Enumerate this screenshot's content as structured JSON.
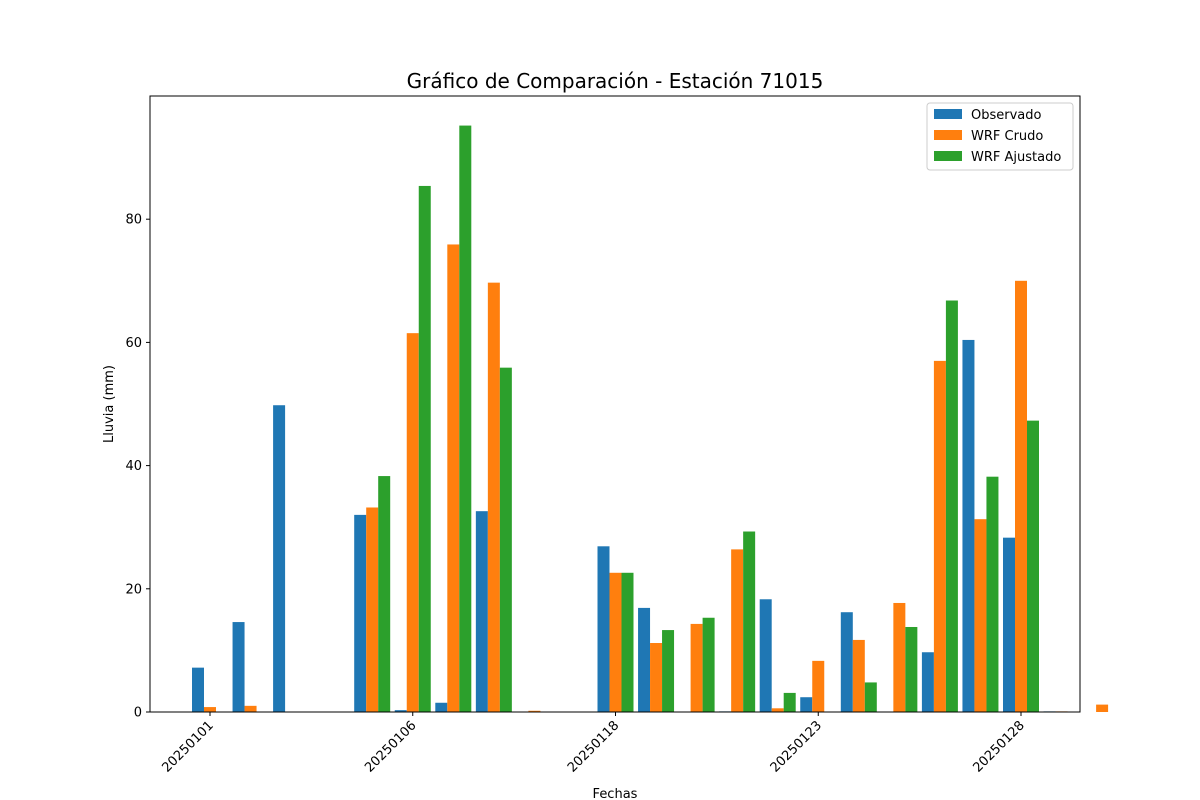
{
  "chart_data": {
    "type": "bar",
    "title": "Gráfico de Comparación - Estación 71015",
    "xlabel": "Fechas",
    "ylabel": "Lluvia (mm)",
    "ylim": [
      0,
      100
    ],
    "yticks": [
      0,
      20,
      40,
      60,
      80
    ],
    "xtick_labels": [
      "20250101",
      "20250106",
      "20250118",
      "20250123",
      "20250128"
    ],
    "legend_position": "top-right",
    "series": [
      {
        "name": "Observado",
        "color": "#1f77b4",
        "values": [
          7.2,
          14.6,
          49.8,
          0,
          32.0,
          0.3,
          1.5,
          32.6,
          0,
          0,
          26.9,
          16.9,
          0,
          0.1,
          18.3,
          2.4,
          16.2,
          0,
          9.7,
          60.4,
          28.3,
          0.1,
          0
        ]
      },
      {
        "name": "WRF Crudo",
        "color": "#ff7f0e",
        "values": [
          0.8,
          1.0,
          0,
          0,
          33.2,
          61.5,
          75.9,
          69.7,
          0.2,
          0,
          22.6,
          11.2,
          14.3,
          26.4,
          0.6,
          8.3,
          11.7,
          17.7,
          57.0,
          31.3,
          70.0,
          0.1,
          1.2
        ]
      },
      {
        "name": "WRF Ajustado",
        "color": "#2ca02c",
        "values": [
          0,
          0,
          0,
          0,
          38.3,
          85.4,
          95.2,
          55.9,
          0,
          0,
          22.6,
          13.3,
          15.3,
          29.3,
          3.1,
          0,
          4.8,
          13.8,
          66.8,
          38.2,
          47.3,
          0,
          0
        ]
      }
    ]
  }
}
